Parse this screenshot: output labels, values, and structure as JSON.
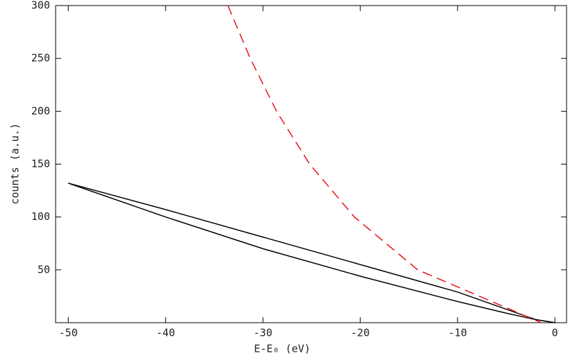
{
  "chart_data": {
    "type": "line",
    "xlabel": "E-E₀ (eV)",
    "ylabel": "counts (a.u.)",
    "xlim": [
      -51.3,
      1.2
    ],
    "ylim": [
      0,
      300
    ],
    "xticks": [
      -50,
      -40,
      -30,
      -20,
      -10,
      0
    ],
    "yticks": [
      50,
      100,
      150,
      200,
      250,
      300
    ],
    "series": [
      {
        "color": "#000000",
        "dash": false,
        "x": [
          -50,
          -40,
          -30,
          -20,
          -10,
          -2,
          0
        ],
        "values": [
          132,
          107,
          81,
          55,
          29,
          3,
          0
        ]
      },
      {
        "color": "#000000",
        "dash": false,
        "x": [
          -50,
          -40,
          -30,
          -20,
          -10,
          -5,
          -2,
          0
        ],
        "values": [
          132,
          100,
          70,
          44,
          20,
          9,
          3,
          0
        ]
      },
      {
        "color": "#e8111a",
        "dash": true,
        "x": [
          -33.6,
          -31.3,
          -28.6,
          -25.2,
          -20.6,
          -14.1,
          -8,
          -1.4
        ],
        "values": [
          300,
          250,
          200,
          150,
          100,
          50,
          26,
          0
        ]
      }
    ]
  }
}
